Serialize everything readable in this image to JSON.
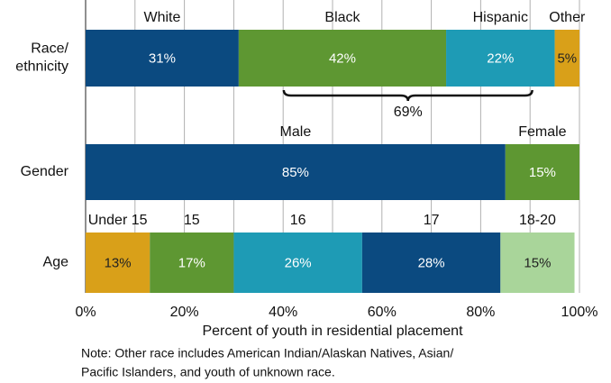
{
  "chart_data": {
    "type": "stacked-bar-h",
    "xlabel": "Percent of youth in residential placement",
    "xlim": [
      0,
      100
    ],
    "xticks": [
      {
        "value": 0,
        "label": "0%"
      },
      {
        "value": 20,
        "label": "20%"
      },
      {
        "value": 40,
        "label": "40%"
      },
      {
        "value": 60,
        "label": "60%"
      },
      {
        "value": 80,
        "label": "80%"
      },
      {
        "value": 100,
        "label": "100%"
      }
    ],
    "minor_xgrid": [
      10,
      30,
      50,
      70,
      90
    ],
    "grid": true,
    "rows": [
      {
        "label": [
          "Race/",
          "ethnicity"
        ],
        "segment_names": [
          "White",
          "Black",
          "Hispanic",
          "Other"
        ],
        "values": [
          31,
          42,
          22,
          5
        ],
        "value_labels": [
          "31%",
          "42%",
          "22%",
          "5%"
        ],
        "colors": [
          "#0b4a80",
          "#5e9732",
          "#1e9bb5",
          "#d9a019"
        ],
        "label_colors": [
          "#ffffff",
          "#ffffff",
          "#ffffff",
          "#222222"
        ]
      },
      {
        "label": [
          "Gender"
        ],
        "segment_names": [
          "Male",
          "Female"
        ],
        "values": [
          85,
          15
        ],
        "value_labels": [
          "85%",
          "15%"
        ],
        "colors": [
          "#0b4a80",
          "#5e9732"
        ],
        "label_colors": [
          "#ffffff",
          "#ffffff"
        ]
      },
      {
        "label": [
          "Age"
        ],
        "segment_names": [
          "Under 15",
          "15",
          "16",
          "17",
          "18-20"
        ],
        "values": [
          13,
          17,
          26,
          28,
          15
        ],
        "value_labels": [
          "13%",
          "17%",
          "26%",
          "28%",
          "15%"
        ],
        "colors": [
          "#d9a019",
          "#5e9732",
          "#1e9bb5",
          "#0b4a80",
          "#a9d59a"
        ],
        "label_colors": [
          "#222222",
          "#ffffff",
          "#ffffff",
          "#ffffff",
          "#222222"
        ]
      }
    ],
    "brace_label": "69%",
    "note": [
      "Note: Other race includes American Indian/Alaskan Natives, Asian/",
      "Pacific Islanders, and youth of unknown race."
    ]
  }
}
